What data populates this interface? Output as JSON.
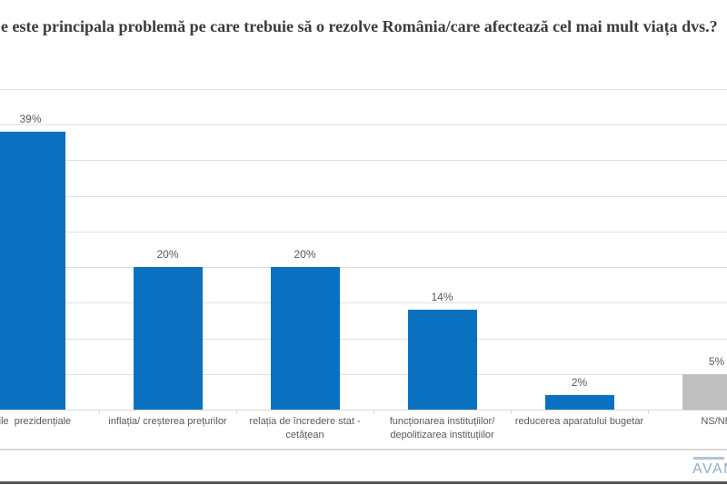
{
  "chart_data": {
    "type": "bar",
    "title": "e este principala problemă pe care trebuie să o rezolve România/care afectează cel mai mult viața dvs.?",
    "categories": [
      "erile  prezidențiale",
      "inflația/ creșterea prețurilor",
      "relația de încredere stat -\ncetățean",
      "funcționarea instituțiilor/\ndepolitizarea instituțiilor",
      "reducerea aparatului bugetar",
      "NS/NR"
    ],
    "values": [
      39,
      20,
      20,
      14,
      2,
      5
    ],
    "value_labels": [
      "39%",
      "20%",
      "20%",
      "14%",
      "2%",
      "5%"
    ],
    "bar_colors": [
      "#0a71c0",
      "#0a71c0",
      "#0a71c0",
      "#0a71c0",
      "#0a71c0",
      "#bfbfbf"
    ],
    "ylim": [
      0,
      45
    ],
    "grid_step": 5,
    "grid": true,
    "legend": false,
    "xlabel": "",
    "ylabel": "",
    "data_label_color": "#595959"
  },
  "logo": {
    "text": "AVAN",
    "color": "#8fadc9"
  }
}
